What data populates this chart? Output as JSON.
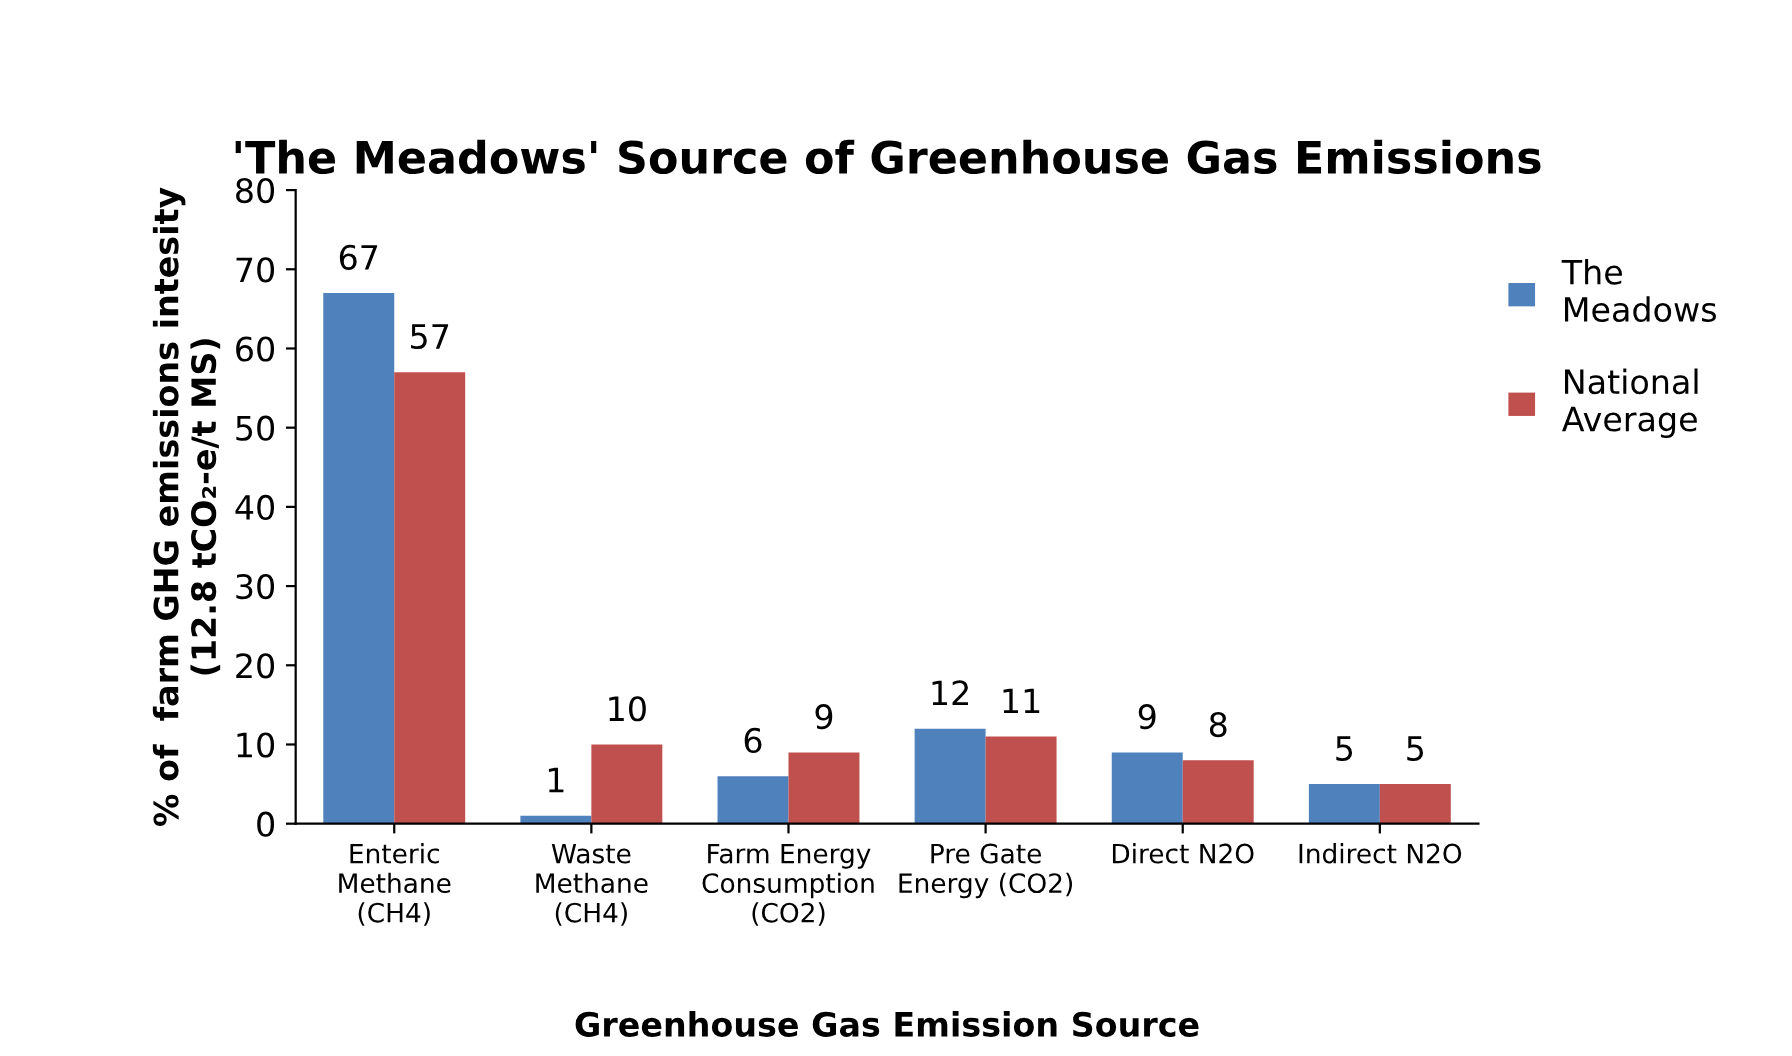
{
  "chart_data": {
    "type": "bar",
    "title": "'The Meadows' Source of Greenhouse Gas Emissions",
    "xlabel": "Greenhouse Gas Emission Source",
    "ylabel": "% of  farm GHG emissions intesity\n(12.8 tCO₂-e/t MS)",
    "categories": [
      "Enteric\nMethane\n(CH4)",
      "Waste\nMethane\n(CH4)",
      "Farm Energy\nConsumption\n(CO2)",
      "Pre Gate\nEnergy (CO2)",
      "Direct N2O",
      "Indirect N2O"
    ],
    "series": [
      {
        "name": "The Meadows",
        "color": "#4f81bd",
        "values": [
          67,
          1,
          6,
          12,
          9,
          5
        ]
      },
      {
        "name": "National Average",
        "color": "#c0504d",
        "values": [
          57,
          10,
          9,
          11,
          8,
          5
        ]
      }
    ],
    "ylim": [
      0,
      80
    ],
    "yticks": [
      0,
      10,
      20,
      30,
      40,
      50,
      60,
      70,
      80
    ],
    "data_labels": true,
    "legend": "right",
    "grid": false
  }
}
